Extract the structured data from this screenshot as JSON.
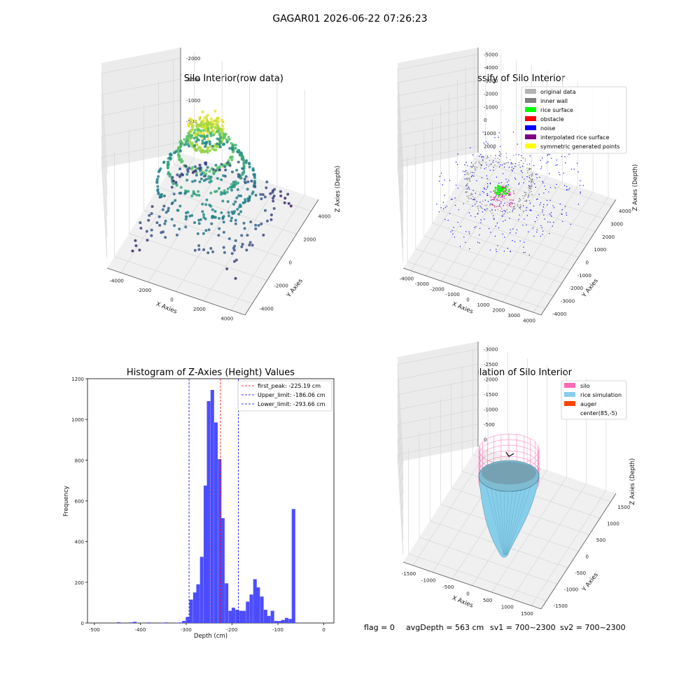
{
  "suptitle": "GAGAR01 2026-06-22 07:26:23",
  "status": {
    "flag": "flag = 0",
    "avg": "avgDepth = 563 cm",
    "sv1": "sv1 = 700~2300",
    "sv2": "sv2 = 700~2300"
  },
  "chart_data": [
    {
      "type": "scatter",
      "projection": "3d",
      "title": "3D Plot of Silo Interior(row data)",
      "xlabel": "X Axies",
      "ylabel": "Y Axies",
      "zlabel": "Z Axies (Depth)",
      "xticks": [
        "-4000",
        "-2000",
        "0",
        "2000",
        "4000"
      ],
      "yticks": [
        "-4000",
        "-2000",
        "0",
        "2000",
        "4000"
      ],
      "zticks": [
        "0",
        "-500",
        "-1000",
        "-1500",
        "-2000"
      ],
      "colormap": "viridis",
      "grid": true
    },
    {
      "type": "scatter",
      "projection": "3d",
      "title": "3D classify of Silo Interior",
      "xlabel": "X Axies",
      "ylabel": "Y Axies",
      "zlabel": "Z Axies (Depth)",
      "xticks": [
        "-4000",
        "-3000",
        "-2000",
        "-1000",
        "0",
        "1000",
        "2000",
        "3000",
        "4000"
      ],
      "yticks": [
        "-4000",
        "-3000",
        "-2000",
        "-1000",
        "0",
        "1000",
        "2000",
        "3000",
        "4000"
      ],
      "zticks": [
        "2000",
        "1000",
        "0",
        "-1000",
        "-2000",
        "-3000",
        "-4000",
        "-5000"
      ],
      "legend_position": "upper right",
      "legend": [
        {
          "label": "original data",
          "color": "#b3b3b3"
        },
        {
          "label": "inner wall",
          "color": "#808080"
        },
        {
          "label": "rice surface",
          "color": "#00ff00"
        },
        {
          "label": "obstacle",
          "color": "#ff0000"
        },
        {
          "label": "noise",
          "color": "#0000ff"
        },
        {
          "label": "interpolated rice surface",
          "color": "#800080"
        },
        {
          "label": "symmetric generated points",
          "color": "#ffff00"
        }
      ],
      "grid": true
    },
    {
      "type": "bar",
      "title": "Histogram of Z-Axies (Height) Values",
      "xlabel": "Depth (cm)",
      "ylabel": "Frequency",
      "xlim": [
        -515,
        22
      ],
      "ylim": [
        0,
        1200
      ],
      "xticks": [
        -500,
        -400,
        -300,
        -200,
        -100,
        0
      ],
      "yticks": [
        0,
        200,
        400,
        600,
        800,
        1000,
        1200
      ],
      "bar_color": "#4d4dff",
      "bin_width": 7.7,
      "bins": [
        {
          "x": -447,
          "y": 4
        },
        {
          "x": -420,
          "y": 3
        },
        {
          "x": -412,
          "y": 6
        },
        {
          "x": -381,
          "y": 3
        },
        {
          "x": -351,
          "y": 2
        },
        {
          "x": -343,
          "y": 3
        },
        {
          "x": -320,
          "y": 2
        },
        {
          "x": -312,
          "y": 3
        },
        {
          "x": -305,
          "y": 10
        },
        {
          "x": -297,
          "y": 30
        },
        {
          "x": -289,
          "y": 115
        },
        {
          "x": -281,
          "y": 150
        },
        {
          "x": -274,
          "y": 190
        },
        {
          "x": -266,
          "y": 325
        },
        {
          "x": -258,
          "y": 675
        },
        {
          "x": -251,
          "y": 1090
        },
        {
          "x": -243,
          "y": 1145
        },
        {
          "x": -235,
          "y": 985
        },
        {
          "x": -227,
          "y": 805
        },
        {
          "x": -220,
          "y": 515
        },
        {
          "x": -212,
          "y": 195
        },
        {
          "x": -204,
          "y": 60
        },
        {
          "x": -197,
          "y": 75
        },
        {
          "x": -189,
          "y": 65
        },
        {
          "x": -181,
          "y": 60
        },
        {
          "x": -174,
          "y": 60
        },
        {
          "x": -166,
          "y": 105
        },
        {
          "x": -158,
          "y": 140
        },
        {
          "x": -150,
          "y": 215
        },
        {
          "x": -143,
          "y": 175
        },
        {
          "x": -135,
          "y": 130
        },
        {
          "x": -127,
          "y": 65
        },
        {
          "x": -120,
          "y": 35
        },
        {
          "x": -112,
          "y": 60
        },
        {
          "x": -104,
          "y": 10
        },
        {
          "x": -96,
          "y": 10
        },
        {
          "x": -89,
          "y": 15
        },
        {
          "x": -81,
          "y": 25
        },
        {
          "x": -73,
          "y": 20
        },
        {
          "x": -66,
          "y": 560
        }
      ],
      "vlines": [
        {
          "x": -225.19,
          "color": "#ff0000",
          "label": "first_peak: -225.19 cm"
        },
        {
          "x": -186.06,
          "color": "#0000ff",
          "label": "Upper_limit: -186.06 cm"
        },
        {
          "x": -293.66,
          "color": "#0000ff",
          "label": "Lower_limit: -293.66 cm"
        }
      ],
      "legend_position": "upper right"
    },
    {
      "type": "surface",
      "projection": "3d",
      "title": "3D simulation of Silo Interior",
      "xlabel": "X Axies",
      "ylabel": "Y Axies",
      "zlabel": "Z Axies (Depth)",
      "xticks": [
        "-1500",
        "-1000",
        "-500",
        "0",
        "500",
        "1000",
        "1500"
      ],
      "yticks": [
        "-1500",
        "-1000",
        "-500",
        "0",
        "500",
        "1000",
        "1500"
      ],
      "zticks": [
        "0",
        "-500",
        "-1000",
        "-1500",
        "-2000",
        "-2500",
        "-3000"
      ],
      "legend_position": "upper right",
      "legend": [
        {
          "label": "silo",
          "color": "#ff69b4"
        },
        {
          "label": "rice simulation",
          "color": "#87ceeb"
        },
        {
          "label": "auger",
          "color": "#ff4500"
        },
        {
          "label": "center(85,-5)",
          "color": "none"
        }
      ],
      "grid": true
    }
  ]
}
